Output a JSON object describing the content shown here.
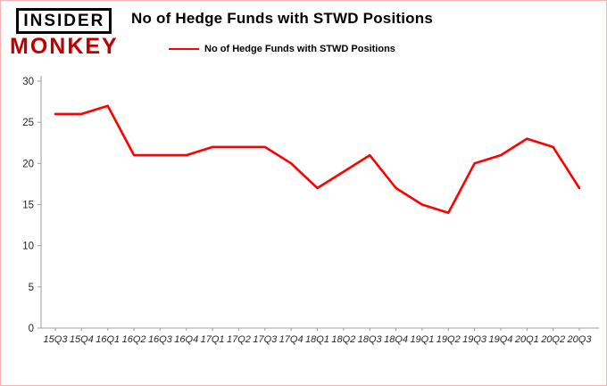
{
  "logo": {
    "line1": "INSIDER",
    "line2": "MONKEY"
  },
  "chart_data": {
    "type": "line",
    "title": "No of Hedge Funds with STWD Positions",
    "legend": "No of Hedge Funds with STWD Positions",
    "categories": [
      "15Q3",
      "15Q4",
      "16Q1",
      "16Q2",
      "16Q3",
      "16Q4",
      "17Q1",
      "17Q2",
      "17Q3",
      "17Q4",
      "18Q1",
      "18Q2",
      "18Q3",
      "18Q4",
      "19Q1",
      "19Q2",
      "19Q3",
      "19Q4",
      "20Q1",
      "20Q2",
      "20Q3"
    ],
    "series": [
      {
        "name": "No of Hedge Funds with STWD Positions",
        "color": "#fe0000",
        "values": [
          26,
          26,
          27,
          21,
          21,
          21,
          22,
          22,
          22,
          20,
          17,
          19,
          21,
          17,
          15,
          14,
          20,
          21,
          23,
          22,
          17
        ]
      }
    ],
    "xlabel": "",
    "ylabel": "",
    "ylim": [
      0,
      30
    ],
    "yticks": [
      0,
      5,
      10,
      15,
      20,
      25,
      30
    ],
    "grid": false,
    "legend_position": "top"
  },
  "colors": {
    "line": "#fe0000",
    "axis": "#9d9d9d",
    "tick_text": "#262626",
    "frame_border": "#f2b3b3",
    "logo_red": "#c00000"
  }
}
